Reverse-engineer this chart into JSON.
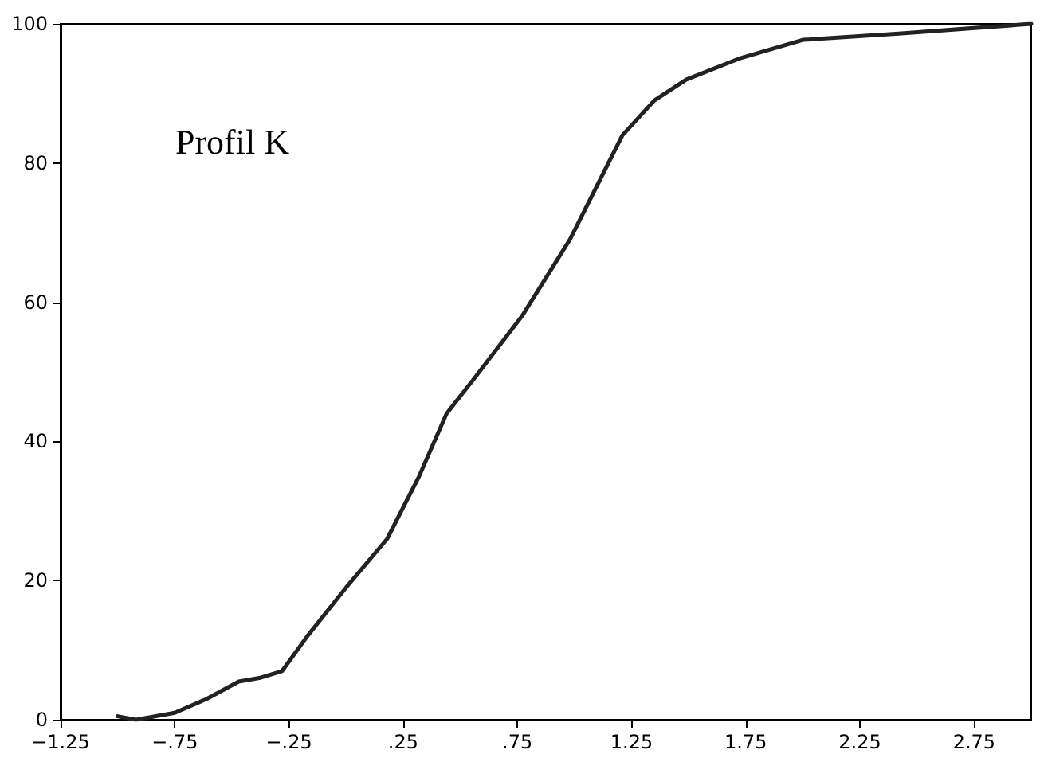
{
  "chart_data": {
    "type": "line",
    "annotations": [
      "Profil K"
    ],
    "x": [
      -1.0,
      -0.92,
      -0.75,
      -0.61,
      -0.47,
      -0.38,
      -0.28,
      -0.17,
      0.0,
      0.18,
      0.32,
      0.44,
      0.56,
      0.77,
      0.98,
      1.21,
      1.35,
      1.49,
      1.72,
      2.0,
      2.42,
      3.0
    ],
    "series": [
      {
        "color": "#222222",
        "values": [
          0.5,
          0,
          1,
          3,
          5.5,
          6,
          7,
          12,
          19,
          26,
          35,
          44,
          49,
          58,
          69,
          84,
          89,
          92,
          95,
          97.7,
          98.6,
          100
        ]
      }
    ],
    "xlim": [
      -1.25,
      3.0
    ],
    "xticks": [
      {
        "value": -1.25,
        "label": "−1.25"
      },
      {
        "value": -0.75,
        "label": "−.75"
      },
      {
        "value": -0.25,
        "label": "−.25"
      },
      {
        "value": 0.25,
        "label": ".25"
      },
      {
        "value": 0.75,
        "label": ".75"
      },
      {
        "value": 1.25,
        "label": "1.25"
      },
      {
        "value": 1.75,
        "label": "1.75"
      },
      {
        "value": 2.25,
        "label": "2.25"
      },
      {
        "value": 2.75,
        "label": "2.75"
      }
    ],
    "ylim": [
      0,
      100
    ],
    "yticks": [
      0,
      20,
      40,
      60,
      80,
      100
    ],
    "grid": false,
    "marker": "none",
    "line_style": "solid"
  }
}
